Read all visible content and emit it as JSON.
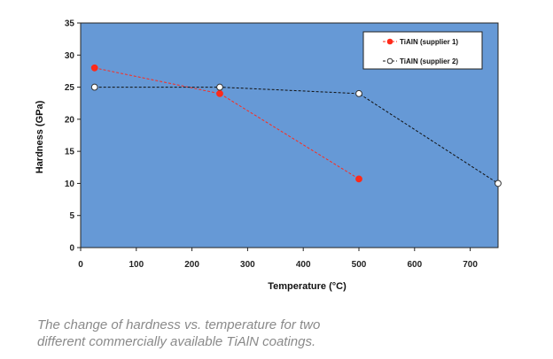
{
  "chart_data": {
    "type": "line",
    "xlabel": "Temperature (°C)",
    "ylabel": "Hardness (GPa)",
    "xlim": [
      0,
      750
    ],
    "ylim": [
      0,
      35
    ],
    "xticks": [
      0,
      100,
      200,
      300,
      400,
      500,
      600,
      700
    ],
    "yticks": [
      0,
      5,
      10,
      15,
      20,
      25,
      30,
      35
    ],
    "grid": false,
    "legend_position": "top-right",
    "plot_background": "#6699d6",
    "series": [
      {
        "name": "TiAlN (supplier 1)",
        "color": "#ff2a1a",
        "line_style": "dashed",
        "marker": "filled-circle",
        "x": [
          25,
          250,
          500
        ],
        "y": [
          28,
          24,
          10.7
        ]
      },
      {
        "name": "TiAlN (supplier 2)",
        "color": "#111111",
        "line_style": "dashed",
        "marker": "open-circle",
        "x": [
          25,
          250,
          500,
          750
        ],
        "y": [
          25,
          25,
          24,
          10
        ]
      }
    ]
  },
  "caption": {
    "line1": "The change of hardness vs. temperature for two",
    "line2": "different commercially available TiAlN coatings."
  }
}
